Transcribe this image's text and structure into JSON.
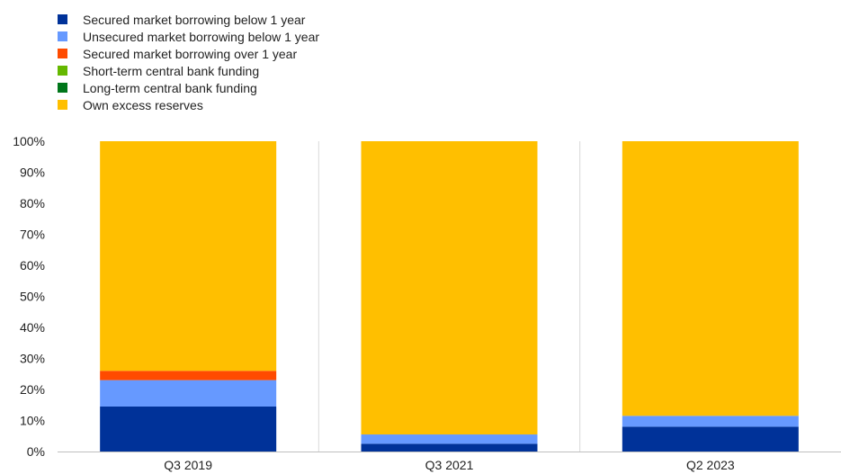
{
  "chart_data": {
    "type": "bar",
    "stacked": true,
    "percent": true,
    "title": "",
    "xlabel": "",
    "ylabel": "",
    "ylim": [
      0,
      100
    ],
    "yticks": [
      "0%",
      "10%",
      "20%",
      "30%",
      "40%",
      "50%",
      "60%",
      "70%",
      "80%",
      "90%",
      "100%"
    ],
    "categories": [
      "Q3 2019",
      "Q3 2021",
      "Q2 2023"
    ],
    "series": [
      {
        "name": "Secured market borrowing below 1 year",
        "color": "#003299",
        "values": [
          14.5,
          2.5,
          8.0
        ]
      },
      {
        "name": "Unsecured market borrowing below 1 year",
        "color": "#6699ff",
        "values": [
          8.5,
          3.0,
          3.5
        ]
      },
      {
        "name": "Secured market borrowing over 1 year",
        "color": "#ff4b00",
        "values": [
          3.0,
          0.0,
          0.0
        ]
      },
      {
        "name": "Short-term central bank funding",
        "color": "#65b800",
        "values": [
          0.0,
          0.0,
          0.0
        ]
      },
      {
        "name": "Long-term central bank funding",
        "color": "#00761a",
        "values": [
          0.0,
          0.0,
          0.0
        ]
      },
      {
        "name": "Own excess reserves",
        "color": "#ffbf00",
        "values": [
          74.0,
          94.5,
          88.5
        ]
      }
    ],
    "legend_position": "top-left",
    "grid": "vertical-separators"
  }
}
